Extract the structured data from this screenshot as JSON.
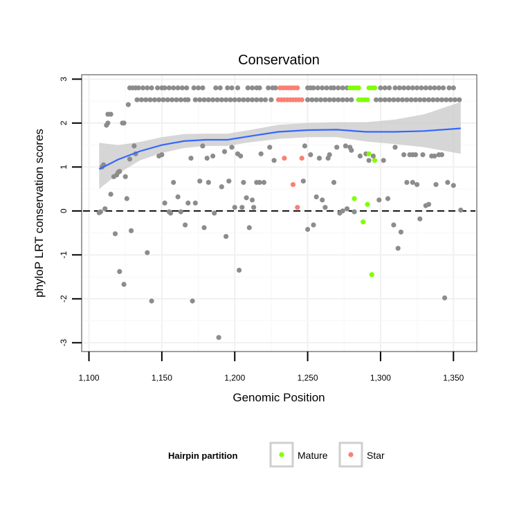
{
  "chart_data": {
    "type": "scatter",
    "title": "Conservation",
    "xlabel": "Genomic Position",
    "ylabel": "phyloP LRT conservation scores",
    "xlim": [
      1095,
      1366
    ],
    "ylim": [
      -3.2,
      3.1
    ],
    "x_ticks": [
      1100,
      1150,
      1200,
      1250,
      1300,
      1350
    ],
    "x_tick_labels": [
      "1,100",
      "1,150",
      "1,200",
      "1,250",
      "1,300",
      "1,350"
    ],
    "y_ticks": [
      -3,
      -2,
      -1,
      0,
      1,
      2,
      3
    ],
    "y_tick_labels": [
      "-3",
      "-2",
      "-1",
      "0",
      "1",
      "2",
      "3"
    ],
    "reference_line": {
      "y": 0,
      "style": "dashed"
    },
    "grid": true,
    "legend": {
      "title": "Hairpin partition",
      "placement": "bottom",
      "entries": [
        {
          "name": "Mature",
          "color": "#7fff00"
        },
        {
          "name": "Star",
          "color": "#fa8072"
        }
      ]
    },
    "colors": {
      "other": "#8c8c8c",
      "smooth": "#3366ff",
      "band": "#cccccc"
    },
    "series": [
      {
        "name": "",
        "color": "#8c8c8c",
        "points": [
          [
            1107,
            -0.04
          ],
          [
            1108,
            -0.02
          ],
          [
            1109,
            1.0
          ],
          [
            1110,
            1.05
          ],
          [
            1111,
            0.05
          ],
          [
            1112,
            1.95
          ],
          [
            1113,
            2.0
          ],
          [
            1113,
            2.2
          ],
          [
            1115,
            2.2
          ],
          [
            1115,
            0.38
          ],
          [
            1117,
            0.78
          ],
          [
            1118,
            -0.52
          ],
          [
            1119,
            0.82
          ],
          [
            1120,
            0.88
          ],
          [
            1121,
            0.9
          ],
          [
            1121,
            -1.38
          ],
          [
            1123,
            2.0
          ],
          [
            1124,
            -1.67
          ],
          [
            1124,
            2.0
          ],
          [
            1125,
            0.78
          ],
          [
            1126,
            0.28
          ],
          [
            1127,
            2.42
          ],
          [
            1128,
            1.18
          ],
          [
            1129,
            -0.45
          ],
          [
            1131,
            1.48
          ],
          [
            1132,
            1.3
          ],
          [
            1140,
            -0.95
          ],
          [
            1143,
            -2.05
          ],
          [
            1148,
            1.25
          ],
          [
            1150,
            1.28
          ],
          [
            1152,
            0.18
          ],
          [
            1155,
            -0.02
          ],
          [
            1156,
            -0.05
          ],
          [
            1158,
            0.65
          ],
          [
            1161,
            0.32
          ],
          [
            1163,
            -0.02
          ],
          [
            1166,
            -0.32
          ],
          [
            1168,
            0.18
          ],
          [
            1170,
            1.2
          ],
          [
            1171,
            -2.05
          ],
          [
            1173,
            0.18
          ],
          [
            1176,
            0.68
          ],
          [
            1178,
            1.48
          ],
          [
            1179,
            -0.38
          ],
          [
            1181,
            1.2
          ],
          [
            1182,
            0.65
          ],
          [
            1185,
            1.25
          ],
          [
            1186,
            -0.05
          ],
          [
            1189,
            -2.88
          ],
          [
            1191,
            0.55
          ],
          [
            1193,
            1.35
          ],
          [
            1194,
            -0.58
          ],
          [
            1196,
            0.68
          ],
          [
            1198,
            1.45
          ],
          [
            1200,
            0.08
          ],
          [
            1202,
            1.3
          ],
          [
            1203,
            -1.35
          ],
          [
            1204,
            1.25
          ],
          [
            1205,
            0.08
          ],
          [
            1206,
            0.65
          ],
          [
            1208,
            0.3
          ],
          [
            1210,
            -0.38
          ],
          [
            1212,
            0.25
          ],
          [
            1213,
            0.08
          ],
          [
            1215,
            0.65
          ],
          [
            1217,
            0.65
          ],
          [
            1218,
            1.3
          ],
          [
            1220,
            0.65
          ],
          [
            1224,
            1.45
          ],
          [
            1227,
            1.15
          ],
          [
            1247,
            0.68
          ],
          [
            1248,
            1.48
          ],
          [
            1250,
            -0.42
          ],
          [
            1252,
            1.28
          ],
          [
            1254,
            -0.32
          ],
          [
            1256,
            0.32
          ],
          [
            1258,
            1.2
          ],
          [
            1260,
            0.25
          ],
          [
            1262,
            0.08
          ],
          [
            1264,
            1.2
          ],
          [
            1265,
            1.28
          ],
          [
            1268,
            0.65
          ],
          [
            1270,
            1.45
          ],
          [
            1272,
            -0.05
          ],
          [
            1274,
            0.0
          ],
          [
            1276,
            1.48
          ],
          [
            1277,
            0.05
          ],
          [
            1279,
            1.45
          ],
          [
            1280,
            1.38
          ],
          [
            1282,
            -0.02
          ],
          [
            1286,
            1.25
          ],
          [
            1290,
            1.3
          ],
          [
            1292,
            1.15
          ],
          [
            1295,
            1.25
          ],
          [
            1299,
            0.25
          ],
          [
            1302,
            1.15
          ],
          [
            1305,
            0.28
          ],
          [
            1309,
            -0.32
          ],
          [
            1310,
            1.45
          ],
          [
            1312,
            -0.85
          ],
          [
            1314,
            -0.48
          ],
          [
            1316,
            1.28
          ],
          [
            1318,
            0.65
          ],
          [
            1320,
            1.28
          ],
          [
            1322,
            0.65
          ],
          [
            1322,
            1.28
          ],
          [
            1324,
            1.28
          ],
          [
            1325,
            0.6
          ],
          [
            1327,
            -0.18
          ],
          [
            1329,
            1.28
          ],
          [
            1331,
            0.12
          ],
          [
            1333,
            0.15
          ],
          [
            1335,
            1.25
          ],
          [
            1337,
            1.25
          ],
          [
            1338,
            0.6
          ],
          [
            1340,
            1.28
          ],
          [
            1342,
            1.28
          ],
          [
            1344,
            -1.98
          ],
          [
            1346,
            0.65
          ],
          [
            1350,
            0.58
          ],
          [
            1355,
            0.02
          ],
          [
            1128,
            2.8
          ],
          [
            1130,
            2.8
          ],
          [
            1132,
            2.8
          ],
          [
            1134,
            2.8
          ],
          [
            1137,
            2.8
          ],
          [
            1140,
            2.8
          ],
          [
            1143,
            2.8
          ],
          [
            1147,
            2.8
          ],
          [
            1150,
            2.8
          ],
          [
            1152,
            2.8
          ],
          [
            1155,
            2.8
          ],
          [
            1158,
            2.8
          ],
          [
            1161,
            2.8
          ],
          [
            1164,
            2.8
          ],
          [
            1167,
            2.8
          ],
          [
            1172,
            2.8
          ],
          [
            1175,
            2.8
          ],
          [
            1178,
            2.8
          ],
          [
            1187,
            2.8
          ],
          [
            1190,
            2.8
          ],
          [
            1195,
            2.8
          ],
          [
            1198,
            2.8
          ],
          [
            1202,
            2.8
          ],
          [
            1209,
            2.8
          ],
          [
            1212,
            2.8
          ],
          [
            1215,
            2.8
          ],
          [
            1217,
            2.8
          ],
          [
            1223,
            2.8
          ],
          [
            1226,
            2.8
          ],
          [
            1228,
            2.8
          ],
          [
            1250,
            2.8
          ],
          [
            1252,
            2.8
          ],
          [
            1254,
            2.8
          ],
          [
            1257,
            2.8
          ],
          [
            1260,
            2.8
          ],
          [
            1263,
            2.8
          ],
          [
            1266,
            2.8
          ],
          [
            1268,
            2.8
          ],
          [
            1271,
            2.8
          ],
          [
            1274,
            2.8
          ],
          [
            1277,
            2.8
          ],
          [
            1300,
            2.8
          ],
          [
            1303,
            2.8
          ],
          [
            1306,
            2.8
          ],
          [
            1310,
            2.8
          ],
          [
            1313,
            2.8
          ],
          [
            1316,
            2.8
          ],
          [
            1319,
            2.8
          ],
          [
            1322,
            2.8
          ],
          [
            1325,
            2.8
          ],
          [
            1328,
            2.8
          ],
          [
            1331,
            2.8
          ],
          [
            1334,
            2.8
          ],
          [
            1337,
            2.8
          ],
          [
            1340,
            2.8
          ],
          [
            1343,
            2.8
          ],
          [
            1347,
            2.8
          ],
          [
            1350,
            2.8
          ],
          [
            1133,
            2.53
          ],
          [
            1136,
            2.53
          ],
          [
            1139,
            2.53
          ],
          [
            1142,
            2.53
          ],
          [
            1145,
            2.53
          ],
          [
            1148,
            2.53
          ],
          [
            1151,
            2.53
          ],
          [
            1154,
            2.53
          ],
          [
            1157,
            2.53
          ],
          [
            1160,
            2.53
          ],
          [
            1163,
            2.53
          ],
          [
            1166,
            2.53
          ],
          [
            1168,
            2.53
          ],
          [
            1173,
            2.53
          ],
          [
            1176,
            2.53
          ],
          [
            1179,
            2.53
          ],
          [
            1182,
            2.53
          ],
          [
            1185,
            2.53
          ],
          [
            1188,
            2.53
          ],
          [
            1191,
            2.53
          ],
          [
            1194,
            2.53
          ],
          [
            1197,
            2.53
          ],
          [
            1200,
            2.53
          ],
          [
            1203,
            2.53
          ],
          [
            1206,
            2.53
          ],
          [
            1209,
            2.53
          ],
          [
            1212,
            2.53
          ],
          [
            1215,
            2.53
          ],
          [
            1218,
            2.53
          ],
          [
            1221,
            2.53
          ],
          [
            1225,
            2.53
          ],
          [
            1250,
            2.53
          ],
          [
            1253,
            2.53
          ],
          [
            1256,
            2.53
          ],
          [
            1259,
            2.53
          ],
          [
            1262,
            2.53
          ],
          [
            1265,
            2.53
          ],
          [
            1268,
            2.53
          ],
          [
            1271,
            2.53
          ],
          [
            1274,
            2.53
          ],
          [
            1277,
            2.53
          ],
          [
            1280,
            2.53
          ],
          [
            1297,
            2.53
          ],
          [
            1300,
            2.53
          ],
          [
            1303,
            2.53
          ],
          [
            1306,
            2.53
          ],
          [
            1309,
            2.53
          ],
          [
            1312,
            2.53
          ],
          [
            1315,
            2.53
          ],
          [
            1318,
            2.53
          ],
          [
            1321,
            2.53
          ],
          [
            1324,
            2.53
          ],
          [
            1327,
            2.53
          ],
          [
            1330,
            2.53
          ],
          [
            1333,
            2.53
          ],
          [
            1336,
            2.53
          ],
          [
            1339,
            2.53
          ],
          [
            1342,
            2.53
          ],
          [
            1345,
            2.53
          ],
          [
            1348,
            2.53
          ],
          [
            1351,
            2.53
          ],
          [
            1354,
            2.53
          ]
        ]
      },
      {
        "name": "Mature",
        "color": "#7fff00",
        "points": [
          [
            1279,
            2.8
          ],
          [
            1281,
            2.8
          ],
          [
            1283,
            2.8
          ],
          [
            1285,
            2.8
          ],
          [
            1292,
            2.8
          ],
          [
            1294,
            2.8
          ],
          [
            1296,
            2.8
          ],
          [
            1285,
            2.53
          ],
          [
            1287,
            2.53
          ],
          [
            1289,
            2.53
          ],
          [
            1291,
            2.53
          ],
          [
            1282,
            0.28
          ],
          [
            1288,
            -0.25
          ],
          [
            1291,
            0.15
          ],
          [
            1292,
            1.3
          ],
          [
            1294,
            -1.45
          ],
          [
            1296,
            1.15
          ]
        ]
      },
      {
        "name": "Star",
        "color": "#fa8072",
        "points": [
          [
            1231,
            2.8
          ],
          [
            1233,
            2.8
          ],
          [
            1235,
            2.8
          ],
          [
            1237,
            2.8
          ],
          [
            1239,
            2.8
          ],
          [
            1241,
            2.8
          ],
          [
            1243,
            2.8
          ],
          [
            1230,
            2.53
          ],
          [
            1232,
            2.53
          ],
          [
            1234,
            2.53
          ],
          [
            1236,
            2.53
          ],
          [
            1238,
            2.53
          ],
          [
            1240,
            2.53
          ],
          [
            1242,
            2.53
          ],
          [
            1244,
            2.53
          ],
          [
            1246,
            2.53
          ],
          [
            1234,
            1.2
          ],
          [
            1240,
            0.6
          ],
          [
            1243,
            0.08
          ],
          [
            1246,
            1.2
          ]
        ]
      }
    ],
    "smooth": {
      "x": [
        1107,
        1120,
        1135,
        1150,
        1165,
        1180,
        1195,
        1210,
        1230,
        1250,
        1270,
        1290,
        1310,
        1330,
        1355
      ],
      "y": [
        0.95,
        1.17,
        1.36,
        1.5,
        1.59,
        1.62,
        1.62,
        1.7,
        1.8,
        1.84,
        1.85,
        1.8,
        1.8,
        1.82,
        1.88
      ],
      "lower": [
        0.5,
        0.85,
        1.15,
        1.32,
        1.43,
        1.48,
        1.48,
        1.56,
        1.64,
        1.68,
        1.68,
        1.58,
        1.52,
        1.45,
        1.3
      ],
      "upper": [
        1.55,
        1.5,
        1.57,
        1.68,
        1.75,
        1.76,
        1.76,
        1.84,
        1.96,
        2.0,
        2.02,
        2.02,
        2.08,
        2.2,
        2.48
      ]
    }
  }
}
